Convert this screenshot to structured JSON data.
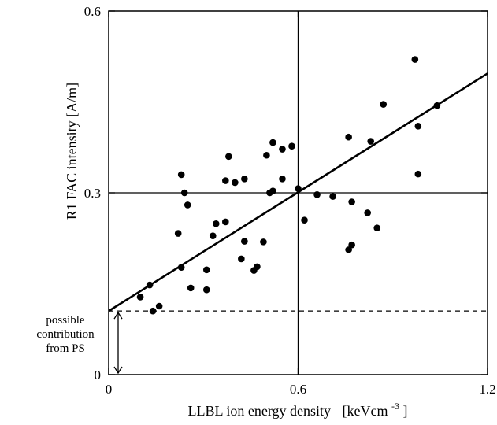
{
  "chart_data": {
    "type": "scatter",
    "title": "",
    "xlabel": "LLBL ion energy density",
    "xlabel_unit": "[keVcm",
    "xlabel_unit_exp": "-3",
    "xlabel_unit_close": "]",
    "ylabel": "R1 FAC intensity  [A/m]",
    "xlim": [
      0,
      1.2
    ],
    "ylim": [
      0,
      0.6
    ],
    "x_ticks": [
      0,
      0.6,
      1.2
    ],
    "x_tick_labels": [
      "0",
      "0.6",
      "1.2"
    ],
    "y_ticks": [
      0,
      0.3,
      0.6
    ],
    "y_tick_labels": [
      "0",
      "0.3",
      "0.6"
    ],
    "grid": false,
    "reference_lines": {
      "x": 0.6,
      "y": 0.3
    },
    "dashed_level": 0.105,
    "annotation_lines": [
      "possible",
      "contribution",
      "from PS"
    ],
    "fit_line": {
      "x": [
        0,
        1.2
      ],
      "y": [
        0.105,
        0.497
      ]
    },
    "points": [
      {
        "x": 0.1,
        "y": 0.128
      },
      {
        "x": 0.13,
        "y": 0.148
      },
      {
        "x": 0.14,
        "y": 0.105
      },
      {
        "x": 0.16,
        "y": 0.113
      },
      {
        "x": 0.22,
        "y": 0.233
      },
      {
        "x": 0.23,
        "y": 0.177
      },
      {
        "x": 0.23,
        "y": 0.33
      },
      {
        "x": 0.24,
        "y": 0.3
      },
      {
        "x": 0.25,
        "y": 0.28
      },
      {
        "x": 0.26,
        "y": 0.143
      },
      {
        "x": 0.31,
        "y": 0.14
      },
      {
        "x": 0.31,
        "y": 0.173
      },
      {
        "x": 0.33,
        "y": 0.229
      },
      {
        "x": 0.34,
        "y": 0.249
      },
      {
        "x": 0.37,
        "y": 0.252
      },
      {
        "x": 0.37,
        "y": 0.32
      },
      {
        "x": 0.38,
        "y": 0.36
      },
      {
        "x": 0.4,
        "y": 0.317
      },
      {
        "x": 0.42,
        "y": 0.191
      },
      {
        "x": 0.43,
        "y": 0.22
      },
      {
        "x": 0.43,
        "y": 0.323
      },
      {
        "x": 0.46,
        "y": 0.172
      },
      {
        "x": 0.47,
        "y": 0.178
      },
      {
        "x": 0.49,
        "y": 0.219
      },
      {
        "x": 0.5,
        "y": 0.362
      },
      {
        "x": 0.51,
        "y": 0.3
      },
      {
        "x": 0.52,
        "y": 0.303
      },
      {
        "x": 0.52,
        "y": 0.383
      },
      {
        "x": 0.55,
        "y": 0.323
      },
      {
        "x": 0.55,
        "y": 0.372
      },
      {
        "x": 0.58,
        "y": 0.377
      },
      {
        "x": 0.6,
        "y": 0.307
      },
      {
        "x": 0.62,
        "y": 0.255
      },
      {
        "x": 0.66,
        "y": 0.297
      },
      {
        "x": 0.71,
        "y": 0.294
      },
      {
        "x": 0.76,
        "y": 0.206
      },
      {
        "x": 0.76,
        "y": 0.392
      },
      {
        "x": 0.77,
        "y": 0.214
      },
      {
        "x": 0.77,
        "y": 0.285
      },
      {
        "x": 0.82,
        "y": 0.267
      },
      {
        "x": 0.83,
        "y": 0.385
      },
      {
        "x": 0.85,
        "y": 0.242
      },
      {
        "x": 0.87,
        "y": 0.446
      },
      {
        "x": 0.97,
        "y": 0.52
      },
      {
        "x": 0.98,
        "y": 0.41
      },
      {
        "x": 0.98,
        "y": 0.331
      },
      {
        "x": 1.04,
        "y": 0.444
      }
    ]
  }
}
